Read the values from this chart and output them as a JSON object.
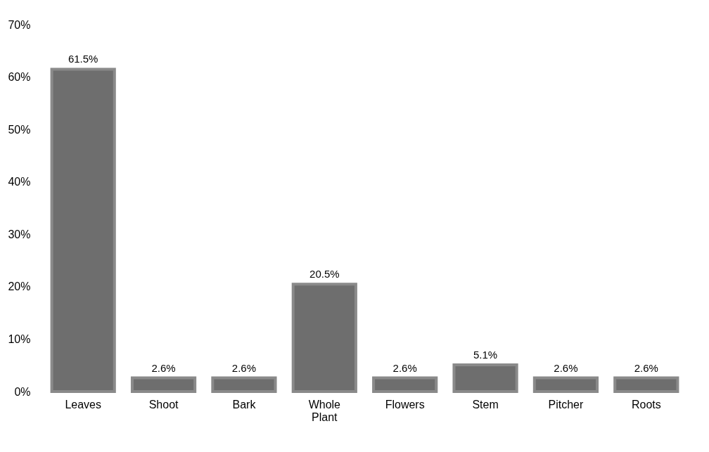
{
  "chart_data": {
    "type": "bar",
    "categories": [
      "Leaves",
      "Shoot",
      "Bark",
      "Whole Plant",
      "Flowers",
      "Stem",
      "Pitcher",
      "Roots"
    ],
    "values": [
      61.5,
      2.6,
      2.6,
      20.5,
      2.6,
      5.1,
      2.6,
      2.6
    ],
    "value_labels": [
      "61.5%",
      "2.6%",
      "2.6%",
      "20.5%",
      "2.6%",
      "5.1%",
      "2.6%",
      "2.6%"
    ],
    "color": "#6e6e6e",
    "ylim": [
      0,
      70
    ],
    "yticks": [
      {
        "value": 0,
        "label": "0%"
      },
      {
        "value": 10,
        "label": "10%"
      },
      {
        "value": 20,
        "label": "20%"
      },
      {
        "value": 30,
        "label": "30%"
      },
      {
        "value": 40,
        "label": "40%"
      },
      {
        "value": 50,
        "label": "50%"
      },
      {
        "value": 60,
        "label": "60%"
      },
      {
        "value": 70,
        "label": "70%"
      }
    ],
    "grid": false
  }
}
